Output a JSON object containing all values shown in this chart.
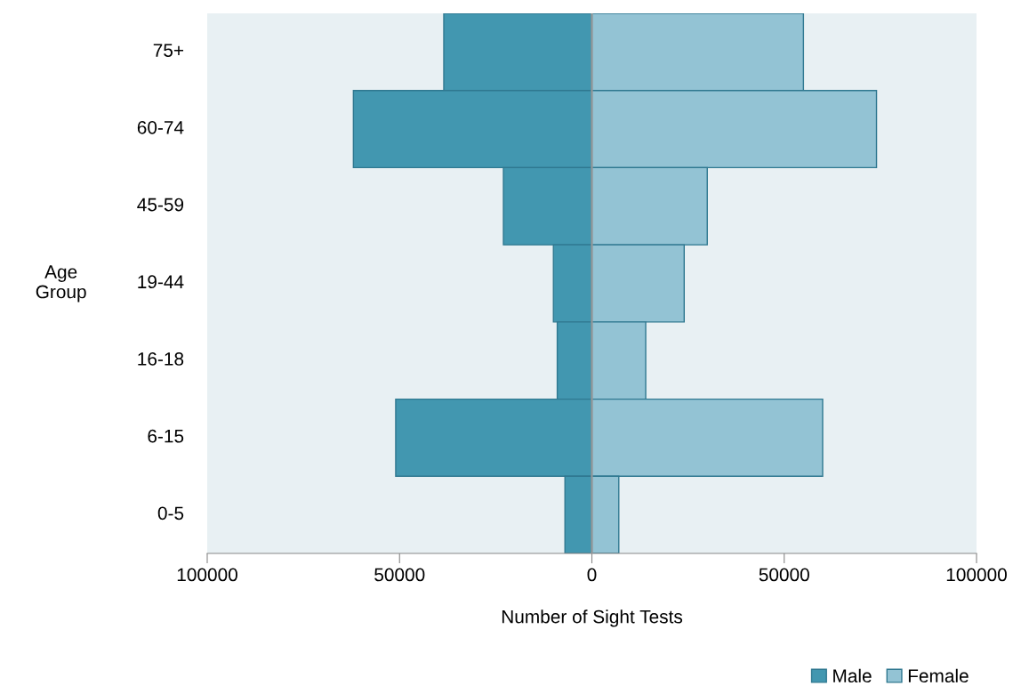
{
  "chart_data": {
    "type": "bar",
    "orientation": "horizontal",
    "stacked": true,
    "ref_lines": [
      {
        "axis": "x",
        "value": 0,
        "color": "#999999"
      }
    ],
    "categories": [
      "75+",
      "60-74",
      "45-59",
      "19-44",
      "16-18",
      "6-15",
      "0-5"
    ],
    "series": [
      {
        "name": "Male",
        "color": "#4297b0",
        "values": [
          -38500,
          -62000,
          -23000,
          -10000,
          -9000,
          -51000,
          -7000
        ]
      },
      {
        "name": "Female",
        "color": "#93c3d4",
        "values": [
          55000,
          74000,
          30000,
          24000,
          14000,
          60000,
          7000
        ]
      }
    ],
    "xlim": [
      -100000,
      100000
    ],
    "xticks": [
      {
        "value": -100000,
        "label": "100000"
      },
      {
        "value": -50000,
        "label": "50000"
      },
      0,
      50000,
      100000
    ],
    "xlabel": "Number of Sight Tests",
    "ylabel": "Age\nGroup",
    "grid": false,
    "legend": "bottom right"
  }
}
